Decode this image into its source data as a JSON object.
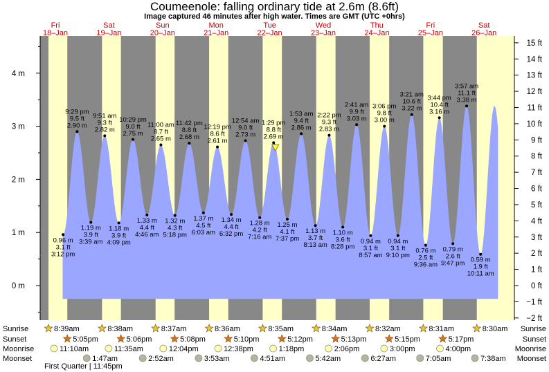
{
  "title": "Coumeenole: falling  ordinary tide at 2.6m (8.6ft)",
  "subtitle": "Image captured 46 minutes after high water. Times are GMT (UTC +0hrs)",
  "colors": {
    "night": "#888888",
    "day": "#ffffc8",
    "tide": "#9aa6ff",
    "date_text": "#cc0000",
    "sun_icon": "#e8c830",
    "sunset_icon": "#e07020",
    "moonrise_icon": "#ffffb4",
    "moonset_icon": "#b4b4a0"
  },
  "dates": [
    {
      "day": "Fri",
      "date": "18–Jan"
    },
    {
      "day": "Sat",
      "date": "19–Jan"
    },
    {
      "day": "Sun",
      "date": "20–Jan"
    },
    {
      "day": "Mon",
      "date": "21–Jan"
    },
    {
      "day": "Tue",
      "date": "22–Jan"
    },
    {
      "day": "Wed",
      "date": "23–Jan"
    },
    {
      "day": "Thu",
      "date": "24–Jan"
    },
    {
      "day": "Fri",
      "date": "25–Jan"
    },
    {
      "day": "Sat",
      "date": "26–Jan"
    }
  ],
  "left_axis": {
    "labels": [
      "0 m",
      "1 m",
      "2 m",
      "3 m",
      "4 m"
    ]
  },
  "right_axis": {
    "labels": [
      "−2 ft",
      "−1 ft",
      "0 ft",
      "1 ft",
      "2 ft",
      "3 ft",
      "4 ft",
      "5 ft",
      "6 ft",
      "7 ft",
      "8 ft",
      "9 ft",
      "10 ft",
      "11 ft",
      "12 ft",
      "13 ft",
      "14 ft",
      "15 ft"
    ]
  },
  "chart_data": {
    "type": "area",
    "title": "Coumeenole: falling  ordinary tide at 2.6m (8.6ft)",
    "y_unit": "m",
    "ylim": [
      -0.25,
      4.7
    ],
    "x_range": [
      "18-Jan 15:00",
      "26-Jan 18:00"
    ],
    "current_level": {
      "time": "22-Jan 14:15",
      "m": 2.6,
      "ft": 8.6
    },
    "extremes": [
      {
        "type": "low",
        "time": "18-Jan 15:12",
        "time_label": "3:12 pm",
        "m": "0.96 m",
        "ft": "3.1 ft",
        "value": 0.96
      },
      {
        "type": "high",
        "time": "18-Jan 21:29",
        "time_label": "9:29 pm",
        "m": "2.90 m",
        "ft": "9.5 ft",
        "value": 2.9
      },
      {
        "type": "low",
        "time": "19-Jan 03:39",
        "time_label": "3:39 am",
        "m": "1.19 m",
        "ft": "3.9 ft",
        "value": 1.19
      },
      {
        "type": "high",
        "time": "19-Jan 09:51",
        "time_label": "9:51 am",
        "m": "2.82 m",
        "ft": "9.3 ft",
        "value": 2.82
      },
      {
        "type": "low",
        "time": "19-Jan 16:09",
        "time_label": "4:09 pm",
        "m": "1.18 m",
        "ft": "3.9 ft",
        "value": 1.18
      },
      {
        "type": "high",
        "time": "19-Jan 22:29",
        "time_label": "10:29 pm",
        "m": "2.75 m",
        "ft": "9.0 ft",
        "value": 2.75
      },
      {
        "type": "low",
        "time": "20-Jan 04:46",
        "time_label": "4:46 am",
        "m": "1.33 m",
        "ft": "4.4 ft",
        "value": 1.33
      },
      {
        "type": "high",
        "time": "20-Jan 11:00",
        "time_label": "11:00 am",
        "m": "2.65 m",
        "ft": "8.7 ft",
        "value": 2.65
      },
      {
        "type": "low",
        "time": "20-Jan 17:18",
        "time_label": "5:18 pm",
        "m": "1.32 m",
        "ft": "4.3 ft",
        "value": 1.32
      },
      {
        "type": "high",
        "time": "20-Jan 23:42",
        "time_label": "11:42 pm",
        "m": "2.68 m",
        "ft": "8.8 ft",
        "value": 2.68
      },
      {
        "type": "low",
        "time": "21-Jan 06:03",
        "time_label": "6:03 am",
        "m": "1.37 m",
        "ft": "4.5 ft",
        "value": 1.37
      },
      {
        "type": "high",
        "time": "21-Jan 12:19",
        "time_label": "12:19 pm",
        "m": "2.61 m",
        "ft": "8.6 ft",
        "value": 2.61
      },
      {
        "type": "low",
        "time": "21-Jan 18:32",
        "time_label": "6:32 pm",
        "m": "1.34 m",
        "ft": "4.4 ft",
        "value": 1.34
      },
      {
        "type": "high",
        "time": "22-Jan 00:54",
        "time_label": "12:54 am",
        "m": "2.73 m",
        "ft": "9.0 ft",
        "value": 2.73
      },
      {
        "type": "low",
        "time": "22-Jan 07:16",
        "time_label": "7:16 am",
        "m": "1.28 m",
        "ft": "4.2 ft",
        "value": 1.28
      },
      {
        "type": "high",
        "time": "22-Jan 13:29",
        "time_label": "1:29 pm",
        "m": "2.69 m",
        "ft": "8.8 ft",
        "value": 2.69
      },
      {
        "type": "low",
        "time": "22-Jan 19:37",
        "time_label": "7:37 pm",
        "m": "1.25 m",
        "ft": "4.1 ft",
        "value": 1.25
      },
      {
        "type": "high",
        "time": "23-Jan 01:53",
        "time_label": "1:53 am",
        "m": "2.86 m",
        "ft": "9.4 ft",
        "value": 2.86
      },
      {
        "type": "low",
        "time": "23-Jan 08:13",
        "time_label": "8:13 am",
        "m": "1.13 m",
        "ft": "3.7 ft",
        "value": 1.13
      },
      {
        "type": "high",
        "time": "23-Jan 14:22",
        "time_label": "2:22 pm",
        "m": "2.83 m",
        "ft": "9.3 ft",
        "value": 2.83
      },
      {
        "type": "low",
        "time": "23-Jan 20:28",
        "time_label": "8:28 pm",
        "m": "1.10 m",
        "ft": "3.6 ft",
        "value": 1.1
      },
      {
        "type": "high",
        "time": "24-Jan 02:41",
        "time_label": "2:41 am",
        "m": "3.03 m",
        "ft": "9.9 ft",
        "value": 3.03
      },
      {
        "type": "low",
        "time": "24-Jan 08:57",
        "time_label": "8:57 am",
        "m": "0.94 m",
        "ft": "3.1 ft",
        "value": 0.94
      },
      {
        "type": "high",
        "time": "24-Jan 15:06",
        "time_label": "3:06 pm",
        "m": "3.00 m",
        "ft": "9.8 ft",
        "value": 3.0
      },
      {
        "type": "low",
        "time": "24-Jan 21:10",
        "time_label": "9:10 pm",
        "m": "0.94 m",
        "ft": "3.1 ft",
        "value": 0.94
      },
      {
        "type": "high",
        "time": "25-Jan 03:21",
        "time_label": "3:21 am",
        "m": "3.22 m",
        "ft": "10.6 ft",
        "value": 3.22
      },
      {
        "type": "low",
        "time": "25-Jan 09:36",
        "time_label": "9:36 am",
        "m": "0.76 m",
        "ft": "2.5 ft",
        "value": 0.76
      },
      {
        "type": "high",
        "time": "25-Jan 15:44",
        "time_label": "3:44 pm",
        "m": "3.16 m",
        "ft": "10.4 ft",
        "value": 3.16
      },
      {
        "type": "low",
        "time": "25-Jan 21:47",
        "time_label": "9:47 pm",
        "m": "0.79 m",
        "ft": "2.6 ft",
        "value": 0.79
      },
      {
        "type": "high",
        "time": "26-Jan 03:57",
        "time_label": "3:57 am",
        "m": "3.38 m",
        "ft": "11.1 ft",
        "value": 3.38
      },
      {
        "type": "low",
        "time": "26-Jan 10:11",
        "time_label": "10:11 am",
        "m": "0.59 m",
        "ft": "1.9 ft",
        "value": 0.59
      }
    ]
  },
  "astro": {
    "row_labels": {
      "sunrise": "Sunrise",
      "sunset": "Sunset",
      "moonrise": "Moonrise",
      "moonset": "Moonset"
    },
    "sunrise": [
      {
        "time": "18-Jan 08:39",
        "label": "8:39am"
      },
      {
        "time": "19-Jan 08:38",
        "label": "8:38am"
      },
      {
        "time": "20-Jan 08:37",
        "label": "8:37am"
      },
      {
        "time": "21-Jan 08:36",
        "label": "8:36am"
      },
      {
        "time": "22-Jan 08:35",
        "label": "8:35am"
      },
      {
        "time": "23-Jan 08:34",
        "label": "8:34am"
      },
      {
        "time": "24-Jan 08:32",
        "label": "8:32am"
      },
      {
        "time": "25-Jan 08:31",
        "label": "8:31am"
      },
      {
        "time": "26-Jan 08:30",
        "label": "8:30am"
      }
    ],
    "sunset": [
      {
        "time": "18-Jan 17:05",
        "label": "5:05pm"
      },
      {
        "time": "19-Jan 17:06",
        "label": "5:06pm"
      },
      {
        "time": "20-Jan 17:08",
        "label": "5:08pm"
      },
      {
        "time": "21-Jan 17:10",
        "label": "5:10pm"
      },
      {
        "time": "22-Jan 17:12",
        "label": "5:12pm"
      },
      {
        "time": "23-Jan 17:13",
        "label": "5:13pm"
      },
      {
        "time": "24-Jan 17:15",
        "label": "5:15pm"
      },
      {
        "time": "25-Jan 17:17",
        "label": "5:17pm"
      }
    ],
    "moonrise": [
      {
        "time": "18-Jan 11:10",
        "label": "11:10am"
      },
      {
        "time": "19-Jan 11:35",
        "label": "11:35am"
      },
      {
        "time": "20-Jan 12:04",
        "label": "12:04pm"
      },
      {
        "time": "21-Jan 12:38",
        "label": "12:38pm"
      },
      {
        "time": "22-Jan 13:18",
        "label": "1:18pm"
      },
      {
        "time": "23-Jan 14:06",
        "label": "2:06pm"
      },
      {
        "time": "24-Jan 15:00",
        "label": "3:00pm"
      },
      {
        "time": "25-Jan 16:00",
        "label": "4:00pm"
      }
    ],
    "moonset": [
      {
        "time": "19-Jan 01:47",
        "label": "1:47am"
      },
      {
        "time": "20-Jan 02:52",
        "label": "2:52am"
      },
      {
        "time": "21-Jan 03:53",
        "label": "3:53am"
      },
      {
        "time": "22-Jan 04:51",
        "label": "4:51am"
      },
      {
        "time": "23-Jan 05:42",
        "label": "5:42am"
      },
      {
        "time": "24-Jan 06:27",
        "label": "6:27am"
      },
      {
        "time": "25-Jan 07:05",
        "label": "7:05am"
      },
      {
        "time": "26-Jan 07:38",
        "label": "7:38am"
      }
    ],
    "moon_phase": "First Quarter | 11:45pm"
  }
}
